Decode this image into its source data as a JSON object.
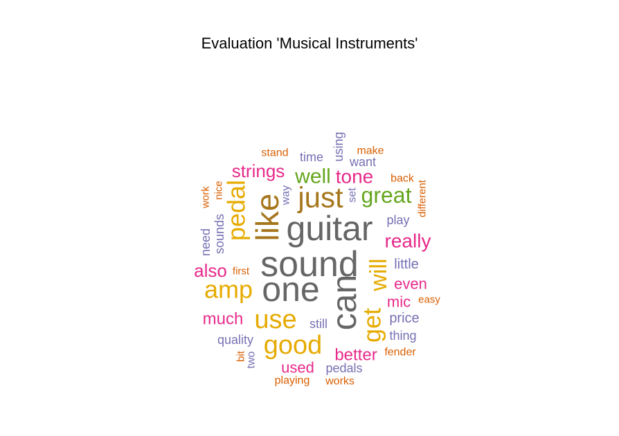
{
  "title": "Evaluation 'Musical Instruments'",
  "palette": {
    "gray": "#666666",
    "brown": "#a6761d",
    "gold": "#e6ab02",
    "green": "#66a61e",
    "pink": "#e7298a",
    "purple": "#7570b3",
    "orange": "#d95f02"
  },
  "words": [
    {
      "text": "sound",
      "color": "gray",
      "vertical": false
    },
    {
      "text": "guitar",
      "color": "gray",
      "vertical": false
    },
    {
      "text": "one",
      "color": "gray",
      "vertical": false
    },
    {
      "text": "can",
      "color": "gray",
      "vertical": true
    },
    {
      "text": "like",
      "color": "brown",
      "vertical": true
    },
    {
      "text": "just",
      "color": "brown",
      "vertical": false
    },
    {
      "text": "pedal",
      "color": "gold",
      "vertical": true
    },
    {
      "text": "amp",
      "color": "gold",
      "vertical": false
    },
    {
      "text": "use",
      "color": "gold",
      "vertical": false
    },
    {
      "text": "good",
      "color": "gold",
      "vertical": false
    },
    {
      "text": "get",
      "color": "gold",
      "vertical": true
    },
    {
      "text": "will",
      "color": "gold",
      "vertical": true
    },
    {
      "text": "great",
      "color": "green",
      "vertical": false
    },
    {
      "text": "well",
      "color": "green",
      "vertical": false
    },
    {
      "text": "tone",
      "color": "pink",
      "vertical": false
    },
    {
      "text": "really",
      "color": "pink",
      "vertical": false
    },
    {
      "text": "strings",
      "color": "pink",
      "vertical": false
    },
    {
      "text": "also",
      "color": "pink",
      "vertical": false
    },
    {
      "text": "much",
      "color": "pink",
      "vertical": false
    },
    {
      "text": "better",
      "color": "pink",
      "vertical": false
    },
    {
      "text": "even",
      "color": "pink",
      "vertical": false
    },
    {
      "text": "mic",
      "color": "pink",
      "vertical": false
    },
    {
      "text": "used",
      "color": "pink",
      "vertical": false
    },
    {
      "text": "little",
      "color": "purple",
      "vertical": false
    },
    {
      "text": "price",
      "color": "purple",
      "vertical": false
    },
    {
      "text": "sounds",
      "color": "purple",
      "vertical": true
    },
    {
      "text": "need",
      "color": "purple",
      "vertical": true
    },
    {
      "text": "quality",
      "color": "purple",
      "vertical": false
    },
    {
      "text": "pedals",
      "color": "purple",
      "vertical": false
    },
    {
      "text": "thing",
      "color": "purple",
      "vertical": false
    },
    {
      "text": "play",
      "color": "purple",
      "vertical": false
    },
    {
      "text": "still",
      "color": "purple",
      "vertical": false
    },
    {
      "text": "want",
      "color": "purple",
      "vertical": false
    },
    {
      "text": "time",
      "color": "purple",
      "vertical": false
    },
    {
      "text": "using",
      "color": "purple",
      "vertical": true
    },
    {
      "text": "way",
      "color": "purple",
      "vertical": true
    },
    {
      "text": "set",
      "color": "purple",
      "vertical": true
    },
    {
      "text": "two",
      "color": "purple",
      "vertical": true
    },
    {
      "text": "stand",
      "color": "orange",
      "vertical": false
    },
    {
      "text": "make",
      "color": "orange",
      "vertical": false
    },
    {
      "text": "back",
      "color": "orange",
      "vertical": false
    },
    {
      "text": "different",
      "color": "orange",
      "vertical": true
    },
    {
      "text": "work",
      "color": "orange",
      "vertical": true
    },
    {
      "text": "nice",
      "color": "orange",
      "vertical": true
    },
    {
      "text": "first",
      "color": "orange",
      "vertical": false
    },
    {
      "text": "easy",
      "color": "orange",
      "vertical": false
    },
    {
      "text": "fender",
      "color": "orange",
      "vertical": false
    },
    {
      "text": "bit",
      "color": "orange",
      "vertical": true
    },
    {
      "text": "playing",
      "color": "orange",
      "vertical": false
    },
    {
      "text": "works",
      "color": "orange",
      "vertical": false
    }
  ]
}
